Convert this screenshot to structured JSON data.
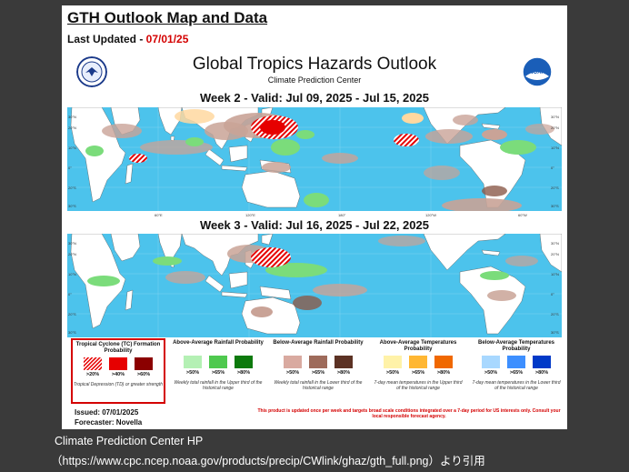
{
  "header": {
    "title": "GTH Outlook Map and Data",
    "updated_label": "Last Updated - ",
    "updated_date": "07/01/25"
  },
  "main_title": "Global Tropics Hazards Outlook",
  "subtitle": "Climate Prediction Center",
  "week2_title": "Week 2 - Valid: Jul 09, 2025 - Jul 15, 2025",
  "week3_title": "Week 3 - Valid: Jul 16, 2025 - Jul 22, 2025",
  "seals": {
    "left": "US Department of Commerce seal",
    "right_text": "NOAA"
  },
  "lat_labels": [
    "30°N",
    "20°N",
    "10°N",
    "0°",
    "10°S",
    "20°S",
    "30°S"
  ],
  "lon_labels": [
    "60°E",
    "120°E",
    "180°",
    "120°W",
    "60°W"
  ],
  "legend": {
    "tc": {
      "title": "Tropical Cyclone (TC) Formation Probability",
      "labels": [
        ">20%",
        ">40%",
        ">60%"
      ],
      "note": "Tropical Depression (TD) or greater strength",
      "colors": [
        "#ffb3b3",
        "#e60000",
        "#8b0000"
      ]
    },
    "above_rain": {
      "title": "Above-Average Rainfall Probability",
      "labels": [
        ">50%",
        ">65%",
        ">80%"
      ],
      "note": "Weekly total rainfall in the Upper third of the historical range",
      "colors": [
        "#b4f0b4",
        "#4fc94f",
        "#0d7a0d"
      ]
    },
    "below_rain": {
      "title": "Below-Average Rainfall Probability",
      "labels": [
        ">50%",
        ">65%",
        ">80%"
      ],
      "note": "Weekly total rainfall in the Lower third of the historical range",
      "colors": [
        "#d9aaa0",
        "#9e6b5b",
        "#5c3224"
      ]
    },
    "above_temp": {
      "title": "Above-Average Temperatures Probability",
      "labels": [
        ">50%",
        ">65%",
        ">80%"
      ],
      "note": "7-day mean temperatures in the Upper third of the historical range",
      "colors": [
        "#fff2a8",
        "#ffb733",
        "#f06800"
      ]
    },
    "below_temp": {
      "title": "Below-Average Temperatures Probability",
      "labels": [
        ">50%",
        ">65%",
        ">80%"
      ],
      "note": "7-day mean temperatures in the Lower third of the historical range",
      "colors": [
        "#a8d8ff",
        "#3d8fff",
        "#0039c8"
      ]
    }
  },
  "issued": "Issued: 07/01/2025",
  "forecaster": "Forecaster: Novella",
  "disclaimer": "This product is updated once per week and targets broad scale conditions integrated over a 7-day period for US interests only. Consult your local responsible forecast agency.",
  "caption": {
    "line1": "Climate Prediction Center HP",
    "line2": "（https://www.cpc.ncep.noaa.gov/products/precip/CWlink/ghaz/gth_full.png）より引用"
  },
  "colors": {
    "ocean": "#4cc3ec",
    "land": "#ffffff",
    "tc_red": "#e60000",
    "rain_green": "#7bdc7b",
    "dry_brown": "#c9a397"
  }
}
